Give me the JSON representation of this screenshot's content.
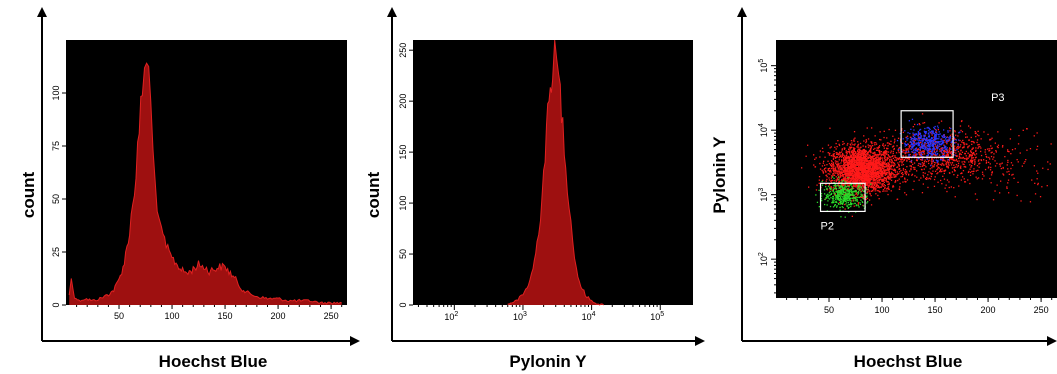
{
  "chart_data": [
    {
      "type": "histogram",
      "xlabel": "Hoechst Blue",
      "ylabel": "count",
      "x_scale": "linear",
      "x_ticks": [
        50,
        100,
        150,
        200,
        250
      ],
      "y_ticks": [
        0,
        25,
        50,
        75,
        100
      ],
      "xlim": [
        0,
        265
      ],
      "ylim": [
        0,
        125
      ],
      "fill": "#9e1010",
      "stroke": "#e02020",
      "background": "#000000",
      "x": [
        3,
        5,
        8,
        12,
        18,
        25,
        32,
        40,
        45,
        50,
        55,
        60,
        63,
        66,
        69,
        72,
        74,
        76,
        78,
        80,
        82,
        84,
        86,
        88,
        90,
        93,
        96,
        100,
        105,
        110,
        115,
        120,
        125,
        130,
        135,
        140,
        145,
        150,
        155,
        160,
        165,
        170,
        180,
        190,
        200,
        210,
        220,
        230,
        240,
        250,
        260
      ],
      "y": [
        5,
        12,
        4,
        2,
        3,
        2,
        3,
        5,
        7,
        12,
        20,
        35,
        48,
        62,
        82,
        102,
        110,
        118,
        108,
        94,
        72,
        58,
        48,
        40,
        34,
        30,
        26,
        22,
        19,
        16,
        15,
        17,
        19,
        18,
        16,
        17,
        18,
        18,
        15,
        12,
        8,
        6,
        4,
        3,
        3,
        2,
        2,
        2,
        1,
        1,
        1
      ]
    },
    {
      "type": "histogram",
      "xlabel": "Pylonin Y",
      "ylabel": "count",
      "x_scale": "log",
      "x_ticks": [
        "10^2",
        "10^3",
        "10^4",
        "10^5"
      ],
      "y_ticks": [
        0,
        50,
        100,
        150,
        200,
        250
      ],
      "xlim": [
        25,
        300000
      ],
      "ylim": [
        0,
        260
      ],
      "fill": "#9e1010",
      "stroke": "#e02020",
      "background": "#000000",
      "x": [
        600,
        800,
        1000,
        1200,
        1400,
        1600,
        1800,
        2000,
        2200,
        2500,
        2700,
        2900,
        3100,
        3300,
        3500,
        3800,
        4200,
        4700,
        5300,
        6000,
        7000,
        8500,
        10000,
        12500,
        15000
      ],
      "y": [
        1,
        4,
        10,
        20,
        35,
        60,
        90,
        130,
        170,
        210,
        240,
        252,
        238,
        222,
        205,
        178,
        140,
        100,
        65,
        35,
        18,
        8,
        4,
        1,
        0
      ]
    },
    {
      "type": "scatter",
      "xlabel": "Hoechst Blue",
      "ylabel": "Pylonin Y",
      "x_scale": "linear",
      "y_scale": "log",
      "x_ticks": [
        50,
        100,
        150,
        200,
        250
      ],
      "y_ticks": [
        "10^2",
        "10^3",
        "10^4",
        "10^5"
      ],
      "xlim": [
        0,
        265
      ],
      "ylim": [
        25,
        250000
      ],
      "background": "#000000",
      "populations": [
        {
          "color": "#ff1a1a",
          "x_center": 80,
          "y_center": 2500,
          "x_spread": 15,
          "y_spread_log": 0.18,
          "points": 2600
        },
        {
          "color": "#ff1a1a",
          "x_center": 150,
          "y_center": 4000,
          "x_spread": 30,
          "y_spread_log": 0.2,
          "points": 900
        },
        {
          "color": "#ff1a1a",
          "x_center": 215,
          "y_center": 3000,
          "x_spread": 30,
          "y_spread_log": 0.25,
          "points": 120
        },
        {
          "color": "#2a36ff",
          "x_center": 143,
          "y_center": 6500,
          "x_spread": 12,
          "y_spread_log": 0.12,
          "points": 450
        },
        {
          "color": "#2adb2a",
          "x_center": 64,
          "y_center": 1000,
          "x_spread": 10,
          "y_spread_log": 0.1,
          "points": 420
        }
      ],
      "gates": [
        {
          "name": "P2",
          "x": [
            42,
            84
          ],
          "y": [
            550,
            1500
          ]
        },
        {
          "name": "P3",
          "x": [
            118,
            167
          ],
          "y": [
            3800,
            20000
          ]
        }
      ]
    }
  ]
}
